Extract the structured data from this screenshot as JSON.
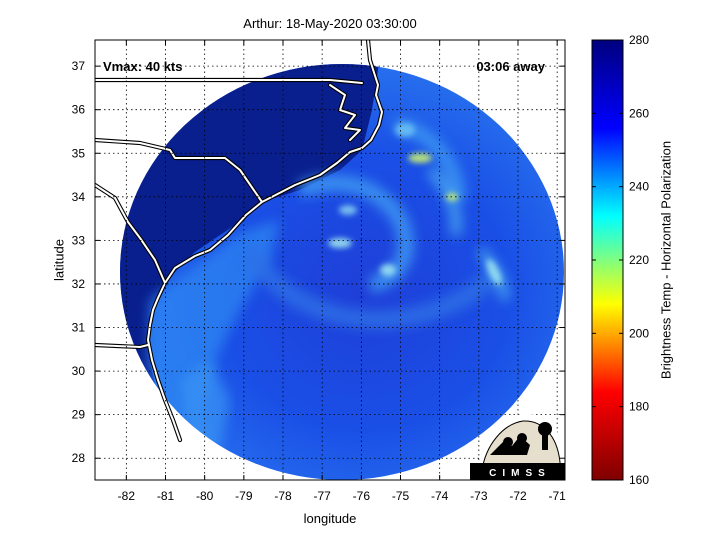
{
  "title": "Arthur: 18-May-2020 03:30:00",
  "map": {
    "xlabel": "longitude",
    "ylabel": "latitude",
    "xlim": [
      -82.8,
      -70.8
    ],
    "ylim": [
      27.5,
      37.6
    ],
    "xticks": [
      -82,
      -81,
      -80,
      -79,
      -78,
      -77,
      -76,
      -75,
      -74,
      -73,
      -72,
      -71
    ],
    "yticks": [
      28,
      29,
      30,
      31,
      32,
      33,
      34,
      35,
      36,
      37
    ],
    "grid": true,
    "vmax_label": "Vmax: 40 kts",
    "away_label": "03:06 away",
    "swath_center": [
      -76.8,
      32.3
    ],
    "storm_center": [
      -76.7,
      32.6
    ]
  },
  "colorbar": {
    "label": "Brightness Temp - Horizontal Polarization",
    "range": [
      160,
      280
    ],
    "ticks": [
      160,
      180,
      200,
      220,
      240,
      260,
      280
    ],
    "colormap": "jet",
    "stops": [
      "#7f0000",
      "#ff0000",
      "#ffff00",
      "#00ffff",
      "#0000ff",
      "#00007f"
    ]
  },
  "logo": {
    "text": "CIMSS"
  }
}
